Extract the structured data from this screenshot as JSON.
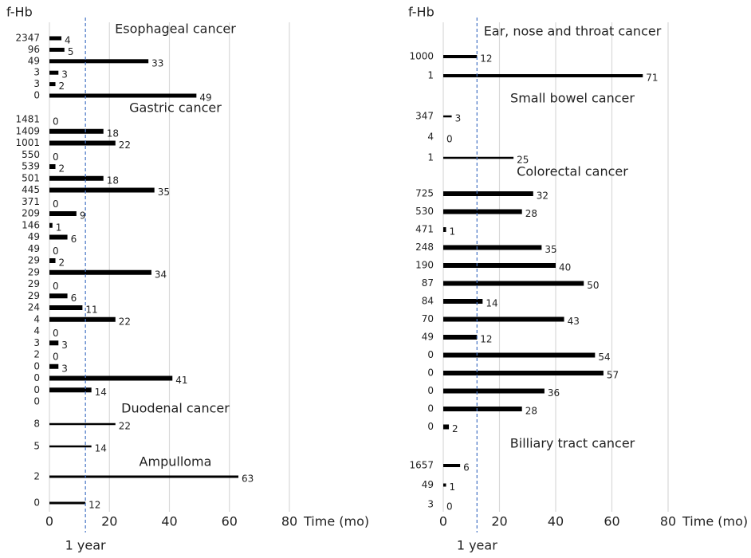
{
  "chart_data": [
    {
      "type": "bar",
      "orientation": "horizontal",
      "y_label": "f-Hb",
      "x_label": "Time (mo)",
      "xlim": [
        0,
        80
      ],
      "xticks": [
        0,
        20,
        40,
        60,
        80
      ],
      "grid": true,
      "color": "#000000",
      "grid_color": "#d9d9d9",
      "reference_line": {
        "value": 12,
        "label": "1 year",
        "color": "#4472c4"
      },
      "groups": [
        {
          "title": "Esophageal cancer",
          "categories": [
            "2347",
            "96",
            "49",
            "3",
            "3",
            "0"
          ],
          "values": [
            4,
            5,
            33,
            3,
            2,
            49
          ]
        },
        {
          "title": "Gastric cancer",
          "categories": [
            "1481",
            "1409",
            "1001",
            "550",
            "539",
            "501",
            "445",
            "371",
            "209",
            "146",
            "49",
            "49",
            "29",
            "29",
            "29",
            "29",
            "24",
            "4",
            "4",
            "3",
            "2",
            "0",
            "0",
            "0",
            "0"
          ],
          "values": [
            0,
            18,
            22,
            0,
            2,
            18,
            35,
            0,
            9,
            1,
            6,
            0,
            2,
            34,
            0,
            6,
            11,
            22,
            0,
            3,
            0,
            3,
            41,
            14,
            null
          ]
        },
        {
          "title": "Duodenal cancer",
          "categories": [
            "8",
            "5"
          ],
          "values": [
            22,
            14
          ]
        },
        {
          "title": "Ampulloma",
          "categories": [
            "2",
            "0"
          ],
          "values": [
            63,
            12
          ]
        }
      ]
    },
    {
      "type": "bar",
      "orientation": "horizontal",
      "y_label": "f-Hb",
      "x_label": "Time (mo)",
      "xlim": [
        0,
        80
      ],
      "xticks": [
        0,
        20,
        40,
        60,
        80
      ],
      "grid": true,
      "color": "#000000",
      "grid_color": "#d9d9d9",
      "reference_line": {
        "value": 12,
        "label": "1 year",
        "color": "#4472c4"
      },
      "groups": [
        {
          "title": "Ear, nose and throat cancer",
          "categories": [
            "1000",
            "1"
          ],
          "values": [
            12,
            71
          ]
        },
        {
          "title": "Small bowel cancer",
          "categories": [
            "347",
            "4",
            "1"
          ],
          "values": [
            3,
            0,
            25
          ]
        },
        {
          "title": "Colorectal cancer",
          "categories": [
            "725",
            "530",
            "471",
            "248",
            "190",
            "87",
            "84",
            "70",
            "49",
            "0",
            "0",
            "0",
            "0",
            "0"
          ],
          "values": [
            32,
            28,
            1,
            35,
            40,
            50,
            14,
            43,
            12,
            54,
            57,
            36,
            28,
            2
          ]
        },
        {
          "title": "Billiary tract cancer",
          "categories": [
            "1657",
            "49",
            "3"
          ],
          "values": [
            6,
            1,
            0
          ]
        }
      ]
    }
  ]
}
